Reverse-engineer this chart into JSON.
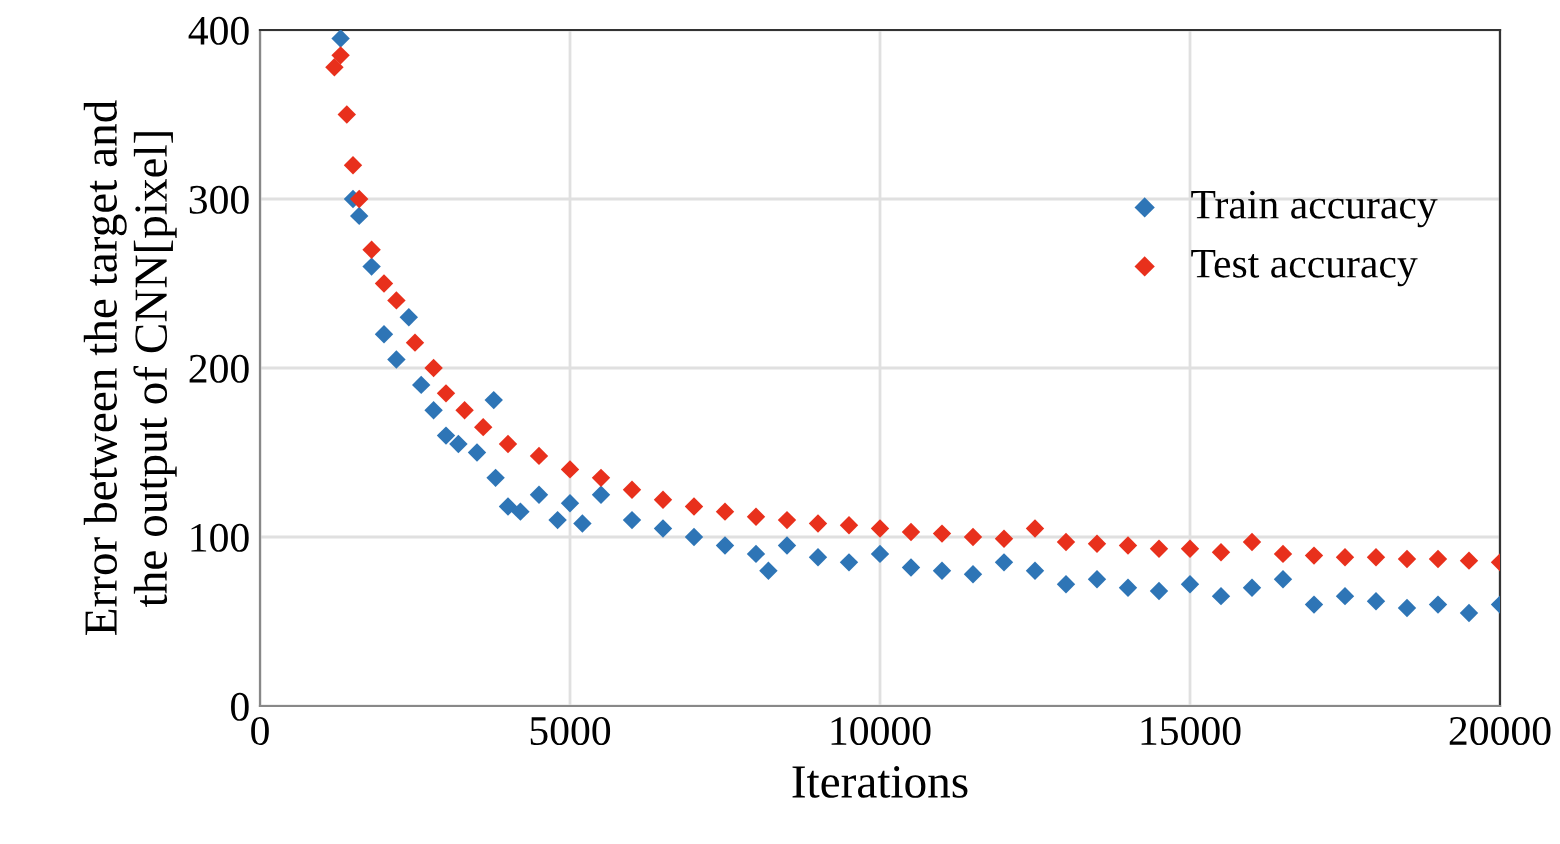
{
  "chart_data": {
    "type": "scatter",
    "xlabel": "Iterations",
    "ylabel": "Error between the target and\nthe output of CNN[pixel]",
    "xlim": [
      0,
      20000
    ],
    "ylim": [
      0,
      400
    ],
    "xticks": [
      0,
      5000,
      10000,
      15000,
      20000
    ],
    "yticks": [
      0,
      100,
      200,
      300,
      400
    ],
    "grid": true,
    "legend": "top right",
    "marker": "diamond",
    "series": [
      {
        "name": "Train accuracy",
        "color": "#2e75b6",
        "x": [
          1300,
          1400,
          1500,
          1600,
          1800,
          2000,
          2200,
          2400,
          2600,
          2800,
          3000,
          3200,
          3500,
          3770,
          3800,
          4000,
          4200,
          4500,
          4800,
          5000,
          5200,
          5500,
          6000,
          6500,
          7000,
          7500,
          8000,
          8200,
          8500,
          9000,
          9500,
          10000,
          10500,
          11000,
          11500,
          12000,
          12500,
          13000,
          13500,
          14000,
          14500,
          15000,
          15500,
          16000,
          16500,
          17000,
          17500,
          18000,
          18500,
          19000,
          19500,
          20000
        ],
        "values": [
          395,
          null,
          300,
          290,
          260,
          220,
          205,
          230,
          190,
          175,
          160,
          155,
          150,
          181,
          135,
          118,
          115,
          125,
          110,
          120,
          108,
          125,
          110,
          105,
          100,
          95,
          90,
          80,
          95,
          88,
          85,
          90,
          82,
          80,
          78,
          85,
          80,
          72,
          75,
          70,
          68,
          72,
          65,
          70,
          75,
          60,
          65,
          62,
          58,
          60,
          55,
          60
        ]
      },
      {
        "name": "Test accuracy",
        "color": "#e8301c",
        "x": [
          1200,
          1300,
          1400,
          1500,
          1600,
          1800,
          2000,
          2200,
          2500,
          2800,
          3000,
          3300,
          3600,
          4000,
          4500,
          5000,
          5500,
          6000,
          6500,
          7000,
          7500,
          8000,
          8500,
          9000,
          9500,
          10000,
          10500,
          11000,
          11500,
          12000,
          12500,
          13000,
          13500,
          14000,
          14500,
          15000,
          15500,
          16000,
          16500,
          17000,
          17500,
          18000,
          18500,
          19000,
          19500,
          20000
        ],
        "values": [
          378,
          385,
          350,
          320,
          300,
          270,
          250,
          240,
          215,
          200,
          185,
          175,
          165,
          155,
          148,
          140,
          135,
          128,
          122,
          118,
          115,
          112,
          110,
          108,
          107,
          105,
          103,
          102,
          100,
          99,
          105,
          97,
          96,
          95,
          93,
          93,
          91,
          97,
          90,
          89,
          88,
          88,
          87,
          87,
          86,
          85
        ]
      }
    ]
  }
}
